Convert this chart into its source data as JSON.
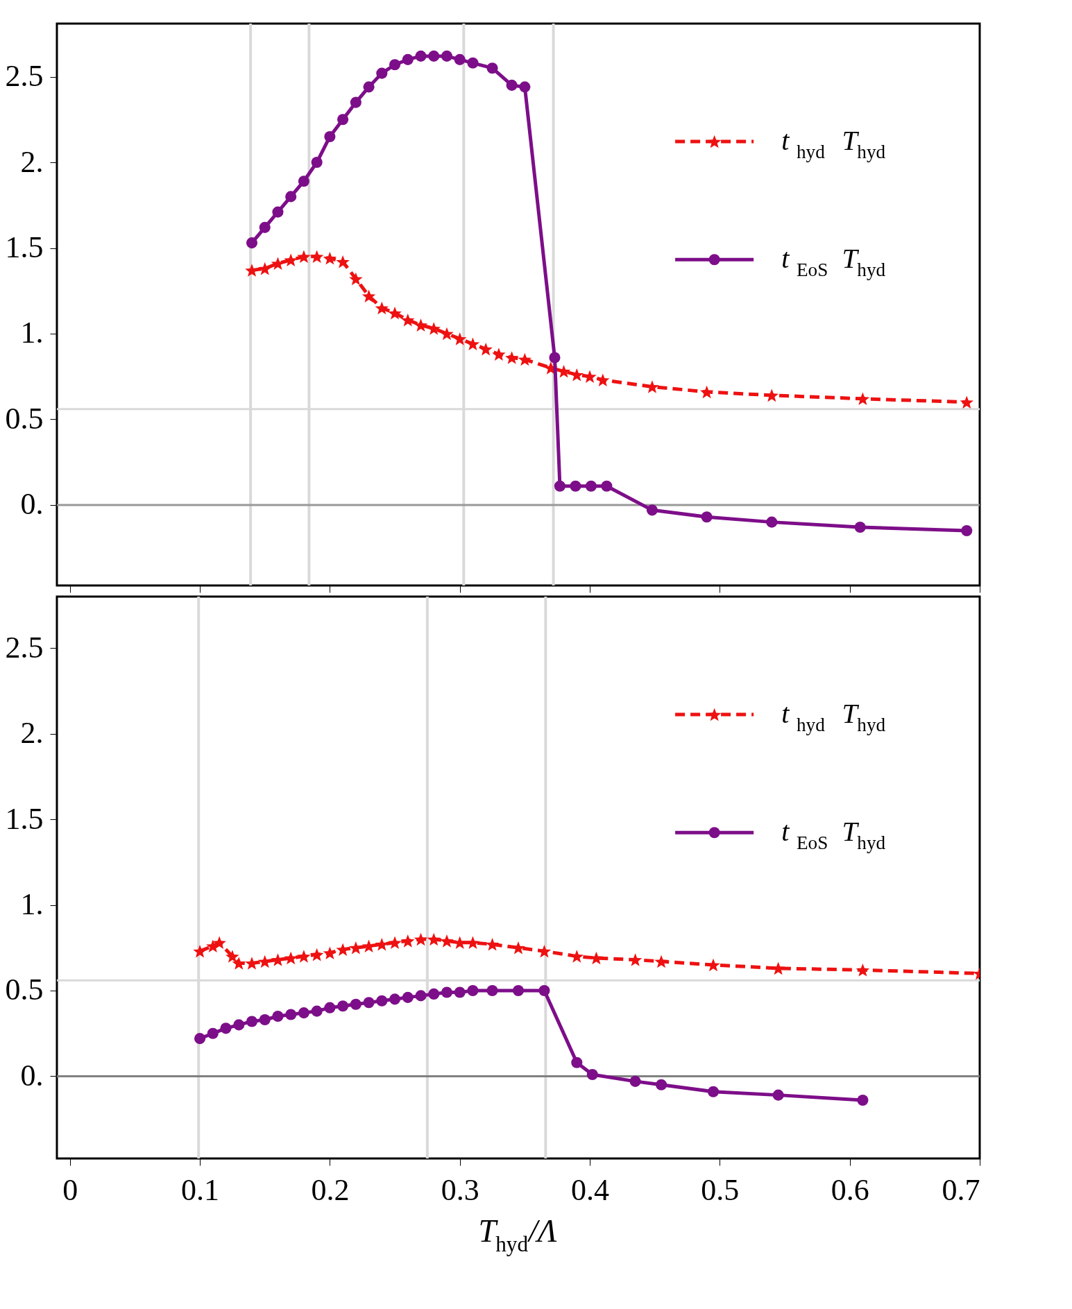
{
  "chart_data": [
    {
      "type": "line",
      "tick_labels": "y",
      "legend": "top right",
      "grid": false,
      "xlim": [
        -0.01,
        0.7
      ],
      "xticks": [
        0,
        0.1,
        0.2,
        0.3,
        0.4,
        0.5,
        0.6,
        0.7
      ],
      "ylim": [
        -0.47,
        2.81
      ],
      "yticks": [
        {
          "value": 0,
          "label": "0."
        },
        0.5,
        {
          "value": 1,
          "label": "1."
        },
        1.5,
        {
          "value": 2,
          "label": "2."
        },
        2.5
      ],
      "ref_lines": [
        {
          "axis": "x",
          "value": 0.139,
          "color": "#d9d9d9"
        },
        {
          "axis": "x",
          "value": 0.184,
          "color": "#d9d9d9"
        },
        {
          "axis": "x",
          "value": 0.303,
          "color": "#d9d9d9"
        },
        {
          "axis": "x",
          "value": 0.372,
          "color": "#d9d9d9"
        },
        {
          "axis": "y",
          "value": 0.56,
          "color": "#d9d9d9"
        },
        {
          "axis": "y",
          "value": 0,
          "color": "#999999"
        }
      ],
      "series": [
        {
          "name": "t$_{hyd}$ T$_{hyd}$",
          "color": "#ee1111",
          "marker": "star",
          "line_style": "dashed",
          "x": [
            0.14,
            0.15,
            0.16,
            0.17,
            0.18,
            0.19,
            0.2,
            0.21,
            0.22,
            0.23,
            0.24,
            0.25,
            0.26,
            0.27,
            0.28,
            0.29,
            0.3,
            0.31,
            0.32,
            0.33,
            0.34,
            0.35,
            0.37,
            0.38,
            0.39,
            0.4,
            0.41,
            0.448,
            0.49,
            0.54,
            0.61,
            0.69
          ],
          "values": [
            1.37,
            1.38,
            1.41,
            1.43,
            1.45,
            1.45,
            1.44,
            1.42,
            1.32,
            1.22,
            1.15,
            1.12,
            1.08,
            1.05,
            1.03,
            1.0,
            0.97,
            0.94,
            0.91,
            0.88,
            0.86,
            0.85,
            0.8,
            0.78,
            0.76,
            0.75,
            0.73,
            0.69,
            0.66,
            0.64,
            0.62,
            0.6
          ]
        },
        {
          "name": "t$_{EoS}$ T$_{hyd}$",
          "color": "#7d0e89",
          "marker": "circle",
          "line_style": "solid",
          "x": [
            0.14,
            0.15,
            0.16,
            0.17,
            0.18,
            0.19,
            0.2,
            0.21,
            0.22,
            0.23,
            0.24,
            0.25,
            0.26,
            0.27,
            0.28,
            0.29,
            0.3,
            0.31,
            0.325,
            0.34,
            0.35,
            0.373,
            0.377,
            0.389,
            0.401,
            0.413,
            0.448,
            0.49,
            0.54,
            0.608,
            0.69
          ],
          "values": [
            1.53,
            1.62,
            1.71,
            1.8,
            1.89,
            2.0,
            2.15,
            2.25,
            2.35,
            2.44,
            2.52,
            2.57,
            2.6,
            2.62,
            2.62,
            2.62,
            2.6,
            2.58,
            2.55,
            2.45,
            2.44,
            0.86,
            0.11,
            0.11,
            0.11,
            0.11,
            -0.03,
            -0.07,
            -0.1,
            -0.13,
            -0.15
          ]
        }
      ]
    },
    {
      "type": "line",
      "legend": "top right",
      "grid": false,
      "xlabel": "T$_{hyd}$/Λ",
      "xlim": [
        -0.01,
        0.7
      ],
      "xticks": [
        0,
        0.1,
        0.2,
        0.3,
        0.4,
        0.5,
        0.6,
        0.7
      ],
      "ylim": [
        -0.48,
        2.8
      ],
      "yticks": [
        {
          "value": 0,
          "label": "0."
        },
        0.5,
        {
          "value": 1,
          "label": "1."
        },
        1.5,
        {
          "value": 2,
          "label": "2."
        },
        2.5
      ],
      "ref_lines": [
        {
          "axis": "x",
          "value": 0.099,
          "color": "#d9d9d9"
        },
        {
          "axis": "x",
          "value": 0.275,
          "color": "#d9d9d9"
        },
        {
          "axis": "x",
          "value": 0.366,
          "color": "#d9d9d9"
        },
        {
          "axis": "y",
          "value": 0.56,
          "color": "#d9d9d9"
        },
        {
          "axis": "y",
          "value": 0,
          "color": "#808080"
        }
      ],
      "series": [
        {
          "name": "t$_{hyd}$ T$_{hyd}$",
          "color": "#ee1111",
          "marker": "star",
          "line_style": "dashed",
          "x": [
            0.1,
            0.11,
            0.115,
            0.125,
            0.13,
            0.14,
            0.15,
            0.16,
            0.17,
            0.18,
            0.19,
            0.2,
            0.21,
            0.22,
            0.23,
            0.24,
            0.25,
            0.26,
            0.27,
            0.28,
            0.29,
            0.3,
            0.31,
            0.325,
            0.345,
            0.365,
            0.39,
            0.405,
            0.435,
            0.455,
            0.495,
            0.545,
            0.61,
            0.7
          ],
          "values": [
            0.73,
            0.76,
            0.78,
            0.7,
            0.66,
            0.66,
            0.67,
            0.68,
            0.69,
            0.7,
            0.71,
            0.72,
            0.74,
            0.75,
            0.76,
            0.77,
            0.78,
            0.79,
            0.8,
            0.8,
            0.79,
            0.78,
            0.78,
            0.77,
            0.75,
            0.73,
            0.7,
            0.69,
            0.68,
            0.67,
            0.65,
            0.63,
            0.62,
            0.6
          ]
        },
        {
          "name": "t$_{EoS}$ T$_{hyd}$",
          "color": "#7d0e89",
          "marker": "circle",
          "line_style": "solid",
          "x": [
            0.1,
            0.11,
            0.12,
            0.13,
            0.14,
            0.15,
            0.16,
            0.17,
            0.18,
            0.19,
            0.2,
            0.21,
            0.22,
            0.23,
            0.24,
            0.25,
            0.26,
            0.27,
            0.28,
            0.29,
            0.3,
            0.31,
            0.325,
            0.345,
            0.365,
            0.39,
            0.402,
            0.435,
            0.455,
            0.495,
            0.545,
            0.61
          ],
          "values": [
            0.22,
            0.25,
            0.28,
            0.3,
            0.32,
            0.33,
            0.35,
            0.36,
            0.37,
            0.38,
            0.4,
            0.41,
            0.42,
            0.43,
            0.44,
            0.45,
            0.46,
            0.47,
            0.48,
            0.49,
            0.49,
            0.5,
            0.5,
            0.5,
            0.5,
            0.08,
            0.01,
            -0.03,
            -0.05,
            -0.09,
            -0.11,
            -0.14
          ]
        }
      ]
    }
  ]
}
